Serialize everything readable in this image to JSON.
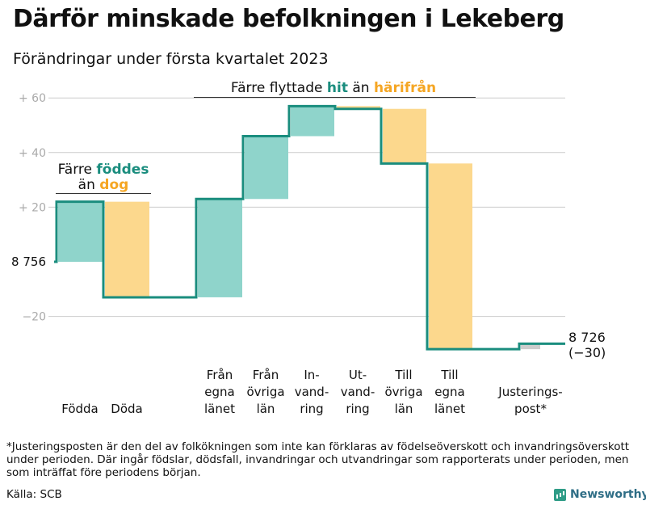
{
  "title": "Därför minskade befolkningen i Lekeberg",
  "subtitle": "Förändringar under första kvartalet 2023",
  "colors": {
    "increase": "#8fd4cb",
    "decrease": "#fcd88d",
    "adjustment": "#cccccc",
    "line": "#1a8d7e",
    "teal_text": "#1a8d7e",
    "orange_text": "#f5a623",
    "grid": "#cccccc",
    "tick_text": "#aaaaaa"
  },
  "chart_data": {
    "type": "waterfall",
    "title": "Därför minskade befolkningen i Lekeberg",
    "subtitle": "Förändringar under första kvartalet 2023",
    "start_value": 8756,
    "end_value": 8726,
    "end_change": "(−30)",
    "start_label": "8 756",
    "end_label": "8 726",
    "yticks": [
      {
        "value": 60,
        "label": "+ 60"
      },
      {
        "value": 40,
        "label": "+ 40"
      },
      {
        "value": 20,
        "label": "+ 20"
      },
      {
        "value": -20,
        "label": "−20"
      }
    ],
    "ylim": [
      -32,
      65
    ],
    "steps": [
      {
        "name": "fodda",
        "label": [
          "Födda"
        ],
        "change": 22,
        "kind": "increase"
      },
      {
        "name": "doda",
        "label": [
          "Döda"
        ],
        "change": -35,
        "kind": "decrease"
      },
      {
        "name": "fran-egna-lanet",
        "label": [
          "Från",
          "egna",
          "länet"
        ],
        "change": 36,
        "kind": "increase"
      },
      {
        "name": "fran-ovriga-lan",
        "label": [
          "Från",
          "övriga",
          "län"
        ],
        "change": 23,
        "kind": "increase"
      },
      {
        "name": "invandring",
        "label": [
          "In-",
          "vand-",
          "ring"
        ],
        "change": 11,
        "kind": "increase"
      },
      {
        "name": "utvandring",
        "label": [
          "Ut-",
          "vand-",
          "ring"
        ],
        "change": -1,
        "kind": "decrease"
      },
      {
        "name": "till-ovriga-lan",
        "label": [
          "Till",
          "övriga",
          "län"
        ],
        "change": -20,
        "kind": "decrease"
      },
      {
        "name": "till-egna-lanet",
        "label": [
          "Till",
          "egna",
          "länet"
        ],
        "change": -68,
        "kind": "decrease"
      },
      {
        "name": "justeringspost",
        "label": [
          "Justerings-",
          "post*"
        ],
        "change": 2,
        "kind": "adjustment"
      }
    ],
    "annotations": [
      {
        "name": "births-deaths",
        "lines": [
          [
            "Färre ",
            "föddes"
          ],
          [
            "än ",
            "dog"
          ]
        ]
      },
      {
        "name": "migration",
        "lines": [
          [
            "Färre flyttade ",
            "hit",
            " än ",
            "härifrån"
          ]
        ]
      }
    ]
  },
  "footnote": "*Justeringsposten är den del av folkökningen som inte kan förklaras av födelseöverskott och invandringsöverskott under perioden. Där ingår födslar, dödsfall, invandringar och utvandringar som rapporterats under perioden, men som inträffat före periodens början.",
  "source": "Källa: SCB",
  "logo_text": "Newsworthy",
  "logo_icon": "bar-chart-icon"
}
